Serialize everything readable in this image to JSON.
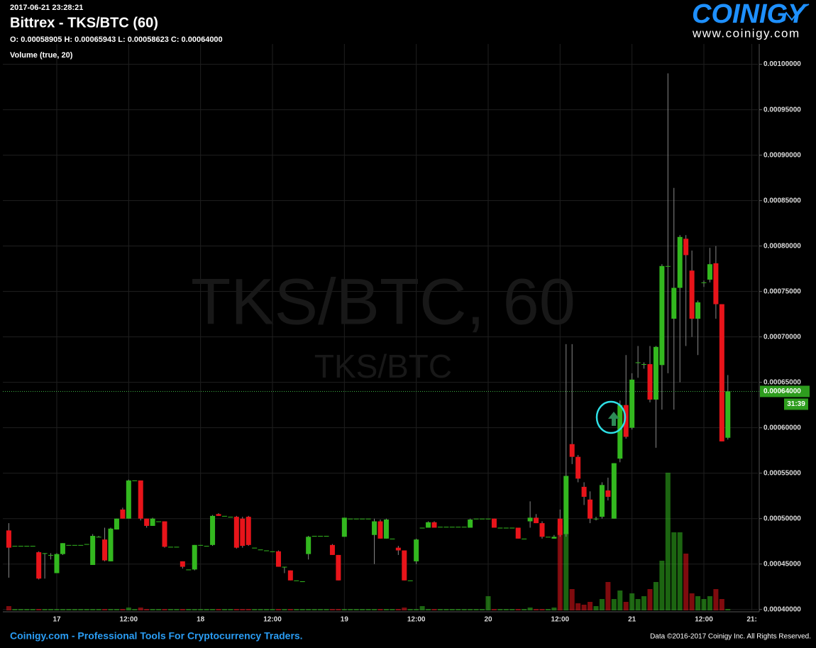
{
  "header": {
    "timestamp": "2017-06-21 23:28:21",
    "title": "Bittrex - TKS/BTC (60)",
    "ohlc": "O: 0.00058905 H: 0.00065943 L: 0.00058623 C: 0.00064000",
    "indicator": "Volume (true, 20)"
  },
  "logo": {
    "name": "COINIGY",
    "url": "www.coinigy.com"
  },
  "footer": {
    "left": "Coinigy.com - Professional Tools For Cryptocurrency Traders.",
    "right": "Data ©2016-2017 Coinigy Inc. All Rights Reserved."
  },
  "chart_data": {
    "type": "candlestick",
    "watermark": "TKS/BTC, 60",
    "watermark_sub": "TKS/BTC",
    "x": [
      -8,
      -7,
      -6,
      -5,
      -4,
      -3,
      -2,
      -1,
      0,
      1,
      2,
      3,
      4,
      5,
      6,
      7,
      8,
      9,
      10,
      11,
      12,
      13,
      14,
      15,
      16,
      17,
      18,
      19,
      20,
      21,
      22,
      23,
      24,
      25,
      26,
      27,
      28,
      29,
      30,
      31,
      32,
      33,
      34,
      35,
      36,
      37,
      38,
      39,
      40,
      41,
      42,
      43,
      44,
      45,
      46,
      47,
      48,
      49,
      50,
      51,
      52,
      53,
      54,
      55,
      56,
      57,
      58,
      59,
      60,
      61,
      62,
      63,
      64,
      65,
      66,
      67,
      68,
      69,
      70,
      71,
      72,
      73,
      74,
      75,
      76,
      77,
      78,
      79,
      80,
      81,
      82,
      83,
      84,
      85,
      86,
      87,
      88,
      89,
      90,
      91,
      92,
      93,
      94,
      95,
      96,
      97,
      98,
      99,
      100,
      101,
      102,
      103,
      104,
      105,
      106,
      107,
      108,
      109,
      110,
      111,
      112
    ],
    "ohlc": [
      [
        0.000487,
        0.000495,
        0.000435,
        0.000468
      ],
      [
        0.00047,
        0.00047,
        0.00047,
        0.00047
      ],
      [
        0.00047,
        0.00047,
        0.00047,
        0.00047
      ],
      [
        0.00047,
        0.00047,
        0.00047,
        0.00047
      ],
      [
        0.00047,
        0.00047,
        0.00047,
        0.00047
      ],
      [
        0.000463,
        0.000464,
        0.000433,
        0.000434
      ],
      [
        0.000462,
        0.000462,
        0.000434,
        0.000462
      ],
      [
        0.00046,
        0.000462,
        0.000455,
        0.00046
      ],
      [
        0.00044,
        0.000462,
        0.00044,
        0.000461
      ],
      [
        0.000461,
        0.000473,
        0.00046,
        0.000473
      ],
      [
        0.000471,
        0.000471,
        0.000471,
        0.000471
      ],
      [
        0.000471,
        0.000471,
        0.000471,
        0.000471
      ],
      [
        0.000471,
        0.000471,
        0.000471,
        0.000471
      ],
      [
        0.000472,
        0.000472,
        0.000472,
        0.000472
      ],
      [
        0.000449,
        0.000483,
        0.000449,
        0.000481
      ],
      [
        0.00048,
        0.000481,
        0.00048,
        0.00048
      ],
      [
        0.000477,
        0.00049,
        0.000453,
        0.000454
      ],
      [
        0.000453,
        0.00049,
        0.000453,
        0.000489
      ],
      [
        0.000488,
        0.0005,
        0.000488,
        0.0005
      ],
      [
        0.00051,
        0.000512,
        0.0005,
        0.0005
      ],
      [
        0.0005,
        0.000543,
        0.0005,
        0.000542
      ],
      [
        0.000542,
        0.000542,
        0.000542,
        0.000542
      ],
      [
        0.000542,
        0.000542,
        0.000498,
        0.0005
      ],
      [
        0.0005,
        0.0005,
        0.00049,
        0.000492
      ],
      [
        0.000492,
        0.000501,
        0.000492,
        0.0005
      ],
      [
        0.000497,
        0.000497,
        0.000497,
        0.000497
      ],
      [
        0.000497,
        0.000497,
        0.000468,
        0.000469
      ],
      [
        0.000469,
        0.000469,
        0.000469,
        0.000469
      ],
      [
        0.000469,
        0.000469,
        0.000469,
        0.000469
      ],
      [
        0.000453,
        0.000453,
        0.000445,
        0.000447
      ],
      [
        0.000444,
        0.000444,
        0.000444,
        0.000444
      ],
      [
        0.000444,
        0.000471,
        0.000443,
        0.000471
      ],
      [
        0.000471,
        0.000471,
        0.000471,
        0.000471
      ],
      [
        0.00047,
        0.00047,
        0.00047,
        0.00047
      ],
      [
        0.000471,
        0.000504,
        0.00047,
        0.000503
      ],
      [
        0.000505,
        0.000506,
        0.000503,
        0.000503
      ],
      [
        0.000503,
        0.000503,
        0.000503,
        0.000503
      ],
      [
        0.000502,
        0.000502,
        0.000502,
        0.000502
      ],
      [
        0.000502,
        0.000503,
        0.000467,
        0.000468
      ],
      [
        0.0005,
        0.000502,
        0.000468,
        0.00047
      ],
      [
        0.000502,
        0.000503,
        0.00047,
        0.000471
      ],
      [
        0.000468,
        0.000468,
        0.000468,
        0.000468
      ],
      [
        0.000466,
        0.000466,
        0.000466,
        0.000466
      ],
      [
        0.000465,
        0.000465,
        0.000465,
        0.000465
      ],
      [
        0.000464,
        0.000464,
        0.000464,
        0.000464
      ],
      [
        0.000464,
        0.000465,
        0.000447,
        0.000447
      ],
      [
        0.000447,
        0.000447,
        0.00044,
        0.000447
      ],
      [
        0.000443,
        0.000443,
        0.000432,
        0.000432
      ],
      [
        0.000432,
        0.000432,
        0.000432,
        0.000432
      ],
      [
        0.000431,
        0.000431,
        0.000431,
        0.000431
      ],
      [
        0.000461,
        0.000481,
        0.000455,
        0.00048
      ],
      [
        0.000481,
        0.000481,
        0.000481,
        0.000481
      ],
      [
        0.000481,
        0.000481,
        0.000481,
        0.000481
      ],
      [
        0.000481,
        0.000481,
        0.000481,
        0.000481
      ],
      [
        0.000471,
        0.000472,
        0.00046,
        0.00046
      ],
      [
        0.00046,
        0.00046,
        0.000432,
        0.000432
      ],
      [
        0.00048,
        0.000501,
        0.00048,
        0.000501
      ],
      [
        0.0005,
        0.0005,
        0.0005,
        0.0005
      ],
      [
        0.0005,
        0.0005,
        0.0005,
        0.0005
      ],
      [
        0.0005,
        0.0005,
        0.0005,
        0.0005
      ],
      [
        0.0005,
        0.0005,
        0.0005,
        0.0005
      ],
      [
        0.000482,
        0.0005,
        0.00045,
        0.000497
      ],
      [
        0.000497,
        0.000499,
        0.000478,
        0.000478
      ],
      [
        0.000478,
        0.0005,
        0.000478,
        0.000499
      ],
      [
        0.000478,
        0.000478,
        0.000478,
        0.000478
      ],
      [
        0.000468,
        0.00047,
        0.00046,
        0.000465
      ],
      [
        0.000465,
        0.000465,
        0.000432,
        0.000432
      ],
      [
        0.000432,
        0.000432,
        0.000432,
        0.000432
      ],
      [
        0.000453,
        0.000478,
        0.00045,
        0.000477
      ],
      [
        0.00049,
        0.00049,
        0.00049,
        0.00049
      ],
      [
        0.00049,
        0.000497,
        0.00049,
        0.000496
      ],
      [
        0.000496,
        0.000497,
        0.00049,
        0.00049
      ],
      [
        0.000491,
        0.000491,
        0.000491,
        0.000491
      ],
      [
        0.000491,
        0.000491,
        0.000491,
        0.000491
      ],
      [
        0.000491,
        0.000491,
        0.000491,
        0.000491
      ],
      [
        0.000491,
        0.000491,
        0.000491,
        0.000491
      ],
      [
        0.000491,
        0.000491,
        0.000491,
        0.000491
      ],
      [
        0.00049,
        0.0005,
        0.00049,
        0.000499
      ],
      [
        0.0005,
        0.0005,
        0.0005,
        0.0005
      ],
      [
        0.0005,
        0.0005,
        0.0005,
        0.0005
      ],
      [
        0.0005,
        0.0005,
        0.0005,
        0.0005
      ],
      [
        0.0005,
        0.0005,
        0.00049,
        0.00049
      ],
      [
        0.00049,
        0.00049,
        0.00049,
        0.00049
      ],
      [
        0.00049,
        0.00049,
        0.00049,
        0.00049
      ],
      [
        0.00049,
        0.00049,
        0.00049,
        0.00049
      ],
      [
        0.00049,
        0.00049,
        0.000478,
        0.000478
      ],
      [
        0.000478,
        0.000478,
        0.000478,
        0.000478
      ],
      [
        0.000497,
        0.000519,
        0.00049,
        0.000501
      ],
      [
        0.000501,
        0.000505,
        0.000495,
        0.000495
      ],
      [
        0.000495,
        0.000497,
        0.000478,
        0.00048
      ],
      [
        0.00048,
        0.00048,
        0.00048,
        0.00048
      ],
      [
        0.000478,
        0.000482,
        0.000478,
        0.00048
      ],
      [
        0.0005,
        0.00051,
        0.00048,
        0.000482
      ],
      [
        0.000483,
        0.000692,
        0.00048,
        0.000547
      ],
      [
        0.000582,
        0.000692,
        0.00056,
        0.000568
      ],
      [
        0.000568,
        0.00057,
        0.00054,
        0.000544
      ],
      [
        0.000535,
        0.00054,
        0.000515,
        0.000524
      ],
      [
        0.000521,
        0.00053,
        0.000495,
        0.0005
      ],
      [
        0.0005,
        0.000502,
        0.000498,
        0.0005
      ],
      [
        0.000502,
        0.00054,
        0.0005,
        0.000537
      ],
      [
        0.000531,
        0.000545,
        0.00052,
        0.000524
      ],
      [
        0.0005,
        0.000561,
        0.0005,
        0.000561
      ],
      [
        0.000566,
        0.00063,
        0.000562,
        0.000625
      ],
      [
        0.000625,
        0.00068,
        0.000588,
        0.00059
      ],
      [
        0.0006,
        0.00066,
        0.000598,
        0.000653
      ],
      [
        0.000672,
        0.00069,
        0.000655,
        0.000672
      ],
      [
        0.00067,
        0.000672,
        0.000665,
        0.00067
      ],
      [
        0.00067,
        0.00069,
        0.000628,
        0.000631
      ],
      [
        0.000631,
        0.00069,
        0.000578,
        0.000689
      ],
      [
        0.000669,
        0.00078,
        0.00062,
        0.000778
      ],
      [
        0.000778,
        0.00099,
        0.00066,
        0.000778
      ],
      [
        0.00072,
        0.000864,
        0.00062,
        0.000754
      ],
      [
        0.000754,
        0.000812,
        0.00065,
        0.00081
      ],
      [
        0.000808,
        0.000812,
        0.00069,
        0.00079
      ],
      [
        0.000773,
        0.000795,
        0.0007,
        0.00072
      ],
      [
        0.00072,
        0.00074,
        0.00068,
        0.000738
      ],
      [
        0.00076,
        0.000762,
        0.000755,
        0.00076
      ],
      [
        0.000763,
        0.000798,
        0.00076,
        0.00078
      ],
      [
        0.000781,
        0.0008,
        0.00072,
        0.000736
      ],
      [
        0.000736,
        0.000736,
        0.000585,
        0.000585
      ],
      [
        0.000589,
        0.000658,
        0.000587,
        0.00064
      ]
    ],
    "volume": [
      3,
      1,
      1,
      1,
      1,
      1,
      1,
      1,
      1,
      1,
      1,
      1,
      1,
      1,
      1,
      1,
      1,
      1,
      1,
      1,
      2,
      1,
      2,
      1,
      1,
      1,
      1,
      1,
      1,
      1,
      1,
      1,
      1,
      1,
      1,
      1,
      1,
      1,
      1,
      1,
      1,
      1,
      1,
      1,
      1,
      1,
      1,
      1,
      1,
      1,
      1,
      1,
      1,
      1,
      1,
      1,
      1,
      1,
      1,
      1,
      1,
      1,
      1,
      1,
      1,
      1,
      2,
      1,
      1,
      3,
      1,
      1,
      1,
      1,
      1,
      1,
      1,
      1,
      1,
      1,
      10,
      1,
      1,
      1,
      1,
      1,
      1,
      2,
      1,
      1,
      1,
      2,
      60,
      55,
      15,
      5,
      4,
      6,
      3,
      8,
      20,
      8,
      14,
      6,
      12,
      8,
      10,
      15,
      20,
      35,
      97,
      55,
      55,
      40,
      12,
      10,
      8,
      10,
      15,
      8,
      1
    ],
    "up_color": "#33b81f",
    "down_color": "#e8141a",
    "xlim": [
      -9,
      117
    ],
    "xticks": [
      {
        "value": 0,
        "label": "17"
      },
      {
        "value": 12,
        "label": "12:00"
      },
      {
        "value": 24,
        "label": "18"
      },
      {
        "value": 36,
        "label": "12:00"
      },
      {
        "value": 48,
        "label": "19"
      },
      {
        "value": 60,
        "label": "12:00"
      },
      {
        "value": 72,
        "label": "20"
      },
      {
        "value": 84,
        "label": "12:00"
      },
      {
        "value": 96,
        "label": "21"
      },
      {
        "value": 108,
        "label": "12:00"
      },
      {
        "value": 116,
        "label": "21:"
      }
    ],
    "ylim": [
      0.000399,
      0.00102
    ],
    "yticks": [
      {
        "value": 0.0004,
        "label": "0.00040000"
      },
      {
        "value": 0.00045,
        "label": "0.00045000"
      },
      {
        "value": 0.0005,
        "label": "0.00050000"
      },
      {
        "value": 0.00055,
        "label": "0.00055000"
      },
      {
        "value": 0.0006,
        "label": "0.00060000"
      },
      {
        "value": 0.00065,
        "label": "0.00065000"
      },
      {
        "value": 0.0007,
        "label": "0.00070000"
      },
      {
        "value": 0.00075,
        "label": "0.00075000"
      },
      {
        "value": 0.0008,
        "label": "0.00080000"
      },
      {
        "value": 0.00085,
        "label": "0.00085000"
      },
      {
        "value": 0.0009,
        "label": "0.00090000"
      },
      {
        "value": 0.00095,
        "label": "0.00095000"
      },
      {
        "value": 0.001,
        "label": "0.00100000"
      }
    ],
    "grid": true,
    "last_price": {
      "value": 0.00064,
      "label": "0.00064000"
    },
    "countdown": "31:39"
  }
}
